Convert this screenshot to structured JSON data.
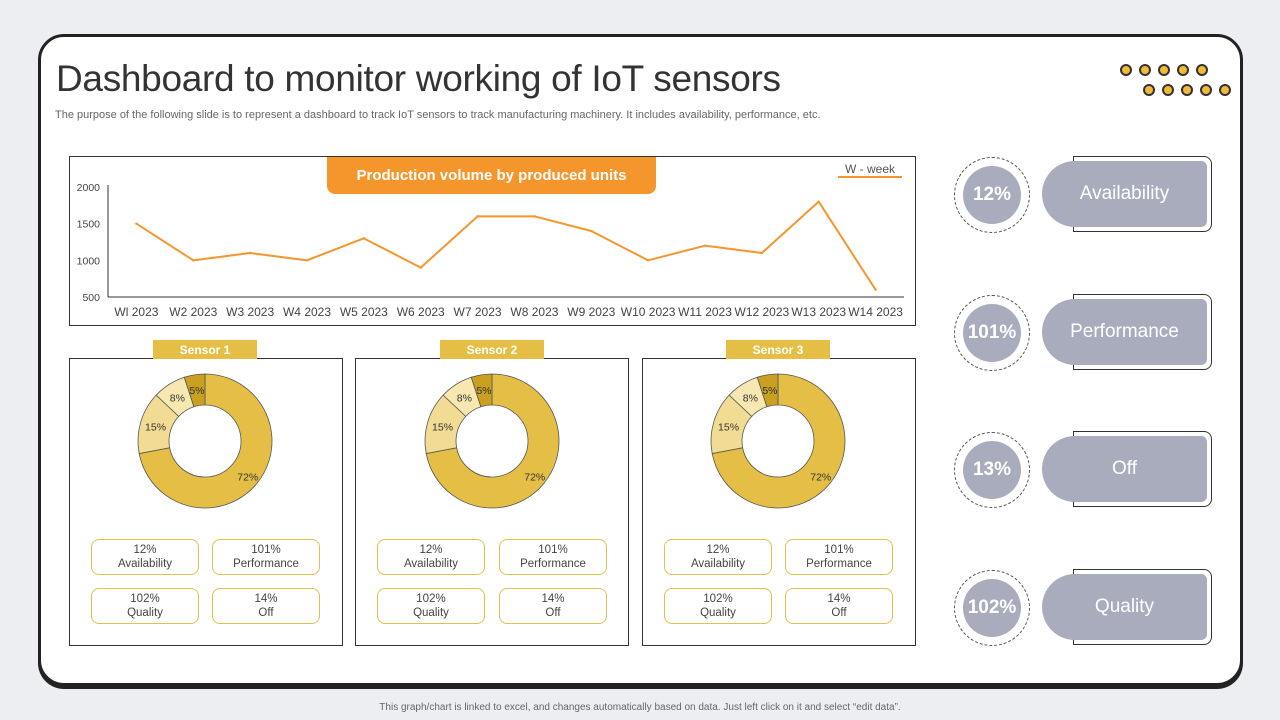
{
  "header": {
    "title": "Dashboard to monitor working of IoT sensors",
    "subtitle": "The purpose of the following slide is to represent a dashboard to track IoT sensors to track manufacturing machinery. It includes availability, performance, etc."
  },
  "colors": {
    "accent": "#f5962d",
    "line": "#f5962d",
    "sensor_tab": "#e5bf45",
    "kpi": "#a9acbd",
    "donut_main": "#e5bf45",
    "donut_light": "#f2dc93",
    "donut_lighter": "#f7e7b0",
    "donut_dark": "#c9a020"
  },
  "chart_data": [
    {
      "type": "line",
      "title": "Production volume by produced units",
      "legend": "W - week",
      "legend_position": "top-right",
      "categories": [
        "Wl 2023",
        "W2 2023",
        "W3 2023",
        "W4 2023",
        "W5 2023",
        "W6 2023",
        "W7 2023",
        "W8 2023",
        "W9 2023",
        "W10 2023",
        "W11 2023",
        "W12 2023",
        "W13 2023",
        "W14 2023"
      ],
      "values": [
        1500,
        1000,
        1100,
        1000,
        1300,
        900,
        1600,
        1600,
        1400,
        1000,
        1200,
        1100,
        1800,
        600
      ],
      "ylim": [
        500,
        2000
      ],
      "yticks": [
        "2000",
        "1500",
        "1000",
        "500"
      ],
      "grid": false
    },
    {
      "type": "pie",
      "title": "Sensor 1",
      "slices": [
        {
          "label": "72%",
          "value": 72
        },
        {
          "label": "15%",
          "value": 15
        },
        {
          "label": "8%",
          "value": 8
        },
        {
          "label": "5%",
          "value": 5
        }
      ]
    },
    {
      "type": "pie",
      "title": "Sensor 2",
      "slices": [
        {
          "label": "72%",
          "value": 72
        },
        {
          "label": "15%",
          "value": 15
        },
        {
          "label": "8%",
          "value": 8
        },
        {
          "label": "5%",
          "value": 5
        }
      ]
    },
    {
      "type": "pie",
      "title": "Sensor 3",
      "slices": [
        {
          "label": "72%",
          "value": 72
        },
        {
          "label": "15%",
          "value": 15
        },
        {
          "label": "8%",
          "value": 8
        },
        {
          "label": "5%",
          "value": 5
        }
      ]
    }
  ],
  "sensors": [
    {
      "name": "Sensor 1",
      "stats": [
        {
          "value": "12%",
          "label": "Availability"
        },
        {
          "value": "101%",
          "label": "Performance"
        },
        {
          "value": "102%",
          "label": "Quality"
        },
        {
          "value": "14%",
          "label": "Off"
        }
      ]
    },
    {
      "name": "Sensor 2",
      "stats": [
        {
          "value": "12%",
          "label": "Availability"
        },
        {
          "value": "101%",
          "label": "Performance"
        },
        {
          "value": "102%",
          "label": "Quality"
        },
        {
          "value": "14%",
          "label": "Off"
        }
      ]
    },
    {
      "name": "Sensor 3",
      "stats": [
        {
          "value": "12%",
          "label": "Availability"
        },
        {
          "value": "101%",
          "label": "Performance"
        },
        {
          "value": "102%",
          "label": "Quality"
        },
        {
          "value": "14%",
          "label": "Off"
        }
      ]
    }
  ],
  "kpis": [
    {
      "value": "12%",
      "label": "Availability"
    },
    {
      "value": "101%",
      "label": "Performance"
    },
    {
      "value": "13%",
      "label": "Off"
    },
    {
      "value": "102%",
      "label": "Quality"
    }
  ],
  "footnote": "This graph/chart is linked to excel, and changes automatically based on data. Just left click on it and select “edit data”."
}
